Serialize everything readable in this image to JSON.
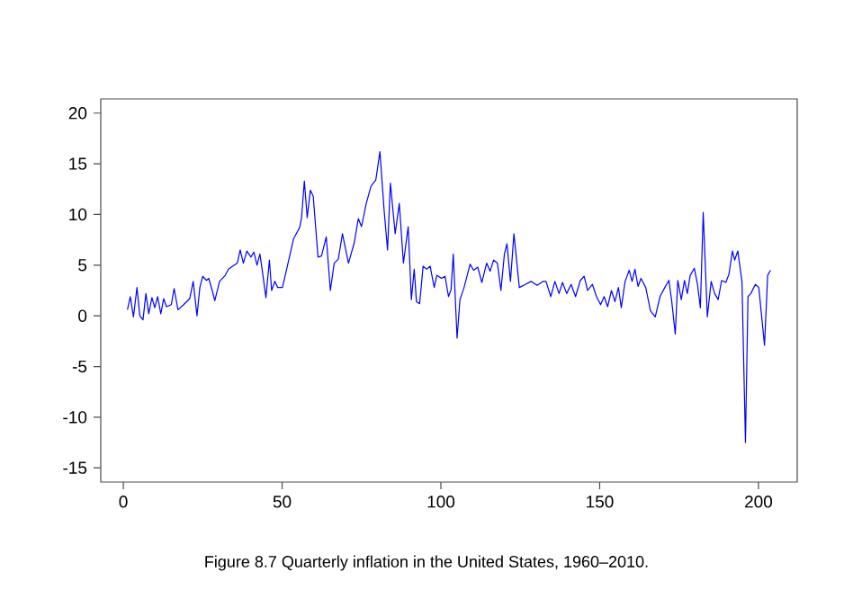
{
  "chart_data": {
    "type": "line",
    "annotations": [
      "Figure 8.7 Quarterly inflation in the United States, 1960–2010."
    ],
    "xlim": [
      -7.1,
      212.2
    ],
    "ylim": [
      -16.4,
      21.4
    ],
    "xticks": [
      0,
      50,
      100,
      150,
      200
    ],
    "yticks": [
      -15,
      -10,
      -5,
      0,
      5,
      10,
      15,
      20
    ],
    "marker": "none",
    "line_style": "solid",
    "series": [
      {
        "color": "#0000ff",
        "x": [
          1.3,
          2.2,
          3.2,
          4.3,
          5.2,
          6.2,
          7.1,
          8,
          9,
          9.9,
          10.8,
          11.8,
          12.7,
          13.6,
          15.1,
          16,
          17.2,
          19,
          20.9,
          22,
          23.2,
          24.1,
          25,
          26.2,
          26.9,
          28,
          28.8,
          30.3,
          32.1,
          33.1,
          34.4,
          35.9,
          36.8,
          37.8,
          38.9,
          40.2,
          41.1,
          42.1,
          43,
          43.7,
          44.9,
          46,
          46.7,
          47.7,
          48.6,
          50.1,
          51.2,
          52.3,
          53.6,
          55.5,
          56.1,
          57,
          57.9,
          58.9,
          59.8,
          61.3,
          62.4,
          63.9,
          65.2,
          66.4,
          67.7,
          69,
          70.9,
          72.7,
          74,
          75,
          76.5,
          78,
          79.5,
          80.8,
          82.1,
          83.2,
          84.1,
          85.6,
          86.9,
          88.2,
          89.7,
          90.7,
          91.6,
          92.3,
          93.3,
          94.4,
          95.5,
          96.6,
          97.9,
          98.7,
          100.2,
          101.3,
          102.4,
          103.2,
          103.9,
          105.1,
          106,
          107.3,
          109.2,
          110.3,
          111.6,
          112.9,
          114.4,
          115.5,
          116.6,
          117.8,
          118.9,
          120,
          120.8,
          121.9,
          123,
          124.7,
          126.6,
          128.4,
          130.3,
          132.2,
          133.1,
          134.6,
          135.9,
          137.2,
          138.3,
          139.6,
          141,
          142.4,
          143.9,
          145.1,
          146.2,
          147.7,
          149,
          150.3,
          151.4,
          152.5,
          153.7,
          154.8,
          155.9,
          156.8,
          158,
          159.3,
          160.2,
          161.1,
          162.1,
          163,
          164.5,
          166,
          167.5,
          169,
          170.5,
          171.8,
          172.7,
          173.8,
          174.6,
          175.7,
          176.7,
          177.6,
          178.5,
          179.8,
          180.8,
          181.7,
          182.6,
          183.9,
          185.1,
          186.2,
          187.3,
          188.4,
          189.7,
          190.7,
          191.8,
          192.5,
          193.5,
          194.8,
          195.9,
          196.7,
          197.6,
          199,
          200.1,
          201.9,
          202.9,
          203.8
        ],
        "values": [
          0.6,
          1.9,
          -0.1,
          2.8,
          0,
          -0.4,
          2.2,
          0.2,
          1.8,
          0.8,
          1.9,
          0.2,
          1.7,
          0.9,
          1.1,
          2.7,
          0.6,
          1.1,
          1.7,
          3.4,
          0,
          2.8,
          3.9,
          3.5,
          3.7,
          2.5,
          1.5,
          3.4,
          4,
          4.6,
          4.9,
          5.2,
          6.5,
          5.2,
          6.4,
          5.8,
          6.3,
          5,
          6.1,
          4.6,
          1.8,
          5.5,
          2.5,
          3.4,
          2.8,
          2.8,
          4.3,
          5.8,
          7.6,
          8.7,
          9.6,
          13.3,
          9.7,
          12.4,
          11.8,
          5.8,
          5.9,
          7.8,
          2.5,
          5.2,
          5.6,
          8.1,
          5.2,
          7.2,
          9.6,
          8.8,
          11.1,
          12.8,
          13.4,
          16.2,
          10.5,
          6.5,
          13.1,
          8.1,
          11.1,
          5.2,
          8.8,
          1.6,
          4.6,
          1.4,
          1.2,
          4.9,
          4.6,
          4.9,
          2.8,
          4,
          3.7,
          3.9,
          1.9,
          2.6,
          6.1,
          -2.2,
          1.6,
          2.8,
          5.1,
          4.5,
          4.8,
          3.3,
          5.2,
          4.4,
          5.5,
          5.2,
          2.5,
          6.1,
          7.1,
          3.4,
          8.1,
          2.8,
          3.1,
          3.4,
          3,
          3.4,
          3.4,
          1.9,
          3.4,
          2.2,
          3.3,
          2.2,
          3.1,
          1.9,
          3.5,
          3.9,
          2.5,
          3.1,
          1.9,
          1.1,
          1.9,
          0.9,
          2.5,
          1.4,
          2.8,
          0.8,
          3.4,
          4.5,
          3.4,
          4.6,
          2.9,
          3.7,
          2.8,
          0.5,
          -0.1,
          1.9,
          2.8,
          3.5,
          1.4,
          -1.8,
          3.5,
          1.6,
          3.5,
          2.2,
          4,
          4.7,
          3.1,
          0.8,
          10.2,
          -0.1,
          3.4,
          2.2,
          1.6,
          3.5,
          3.3,
          4.1,
          6.4,
          5.5,
          6.4,
          3.4,
          -12.5,
          1.9,
          2.2,
          3.1,
          2.8,
          -2.9,
          4,
          4.5
        ]
      }
    ]
  }
}
